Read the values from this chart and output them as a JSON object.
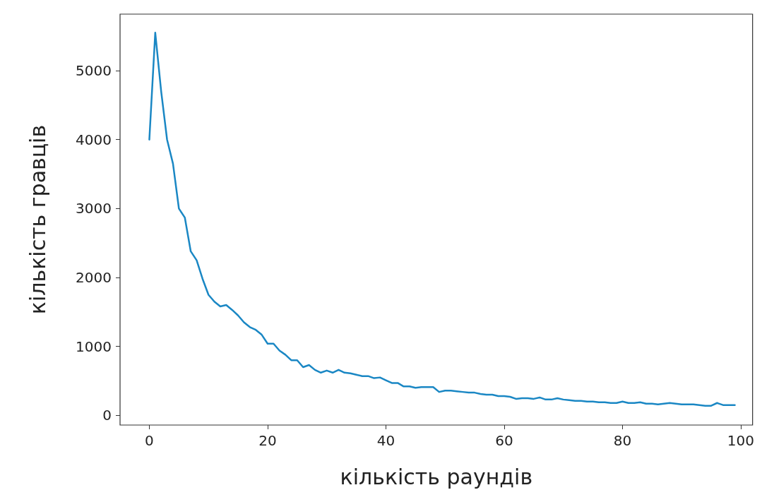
{
  "chart_data": {
    "type": "line",
    "xlabel": "кількість раундів",
    "ylabel": "кількість гравців",
    "x": [
      0,
      1,
      2,
      3,
      4,
      5,
      6,
      7,
      8,
      9,
      10,
      11,
      12,
      13,
      14,
      15,
      16,
      17,
      18,
      19,
      20,
      21,
      22,
      23,
      24,
      25,
      26,
      27,
      28,
      29,
      30,
      31,
      32,
      33,
      34,
      35,
      36,
      37,
      38,
      39,
      40,
      41,
      42,
      43,
      44,
      45,
      46,
      47,
      48,
      49,
      50,
      51,
      52,
      53,
      54,
      55,
      56,
      57,
      58,
      59,
      60,
      61,
      62,
      63,
      64,
      65,
      66,
      67,
      68,
      69,
      70,
      71,
      72,
      73,
      74,
      75,
      76,
      77,
      78,
      79,
      80,
      81,
      82,
      83,
      84,
      85,
      86,
      87,
      88,
      89,
      90,
      91,
      92,
      93,
      94,
      95,
      96,
      97,
      98,
      99
    ],
    "series": [
      {
        "color": "#1a87c4",
        "values": [
          4000,
          5550,
          4700,
          4000,
          3650,
          3000,
          2870,
          2380,
          2250,
          1980,
          1750,
          1650,
          1580,
          1600,
          1530,
          1450,
          1350,
          1280,
          1240,
          1170,
          1040,
          1040,
          940,
          880,
          800,
          800,
          700,
          730,
          660,
          620,
          650,
          620,
          660,
          620,
          610,
          590,
          570,
          570,
          540,
          550,
          510,
          470,
          470,
          420,
          420,
          400,
          410,
          410,
          410,
          340,
          360,
          360,
          350,
          340,
          330,
          330,
          310,
          300,
          300,
          280,
          280,
          270,
          240,
          250,
          250,
          240,
          260,
          230,
          230,
          250,
          230,
          220,
          210,
          210,
          200,
          200,
          190,
          190,
          180,
          180,
          200,
          180,
          180,
          190,
          170,
          170,
          160,
          170,
          180,
          170,
          160,
          160,
          160,
          150,
          140,
          140,
          180,
          150,
          150,
          150
        ]
      }
    ],
    "xlim": [
      -4.95,
      102
    ],
    "ylim": [
      -140,
      5820
    ],
    "xticks": [
      0,
      20,
      40,
      60,
      80,
      100
    ],
    "yticks": [
      0,
      1000,
      2000,
      3000,
      4000,
      5000
    ],
    "grid": false,
    "marker": "none",
    "line_style": "solid"
  }
}
